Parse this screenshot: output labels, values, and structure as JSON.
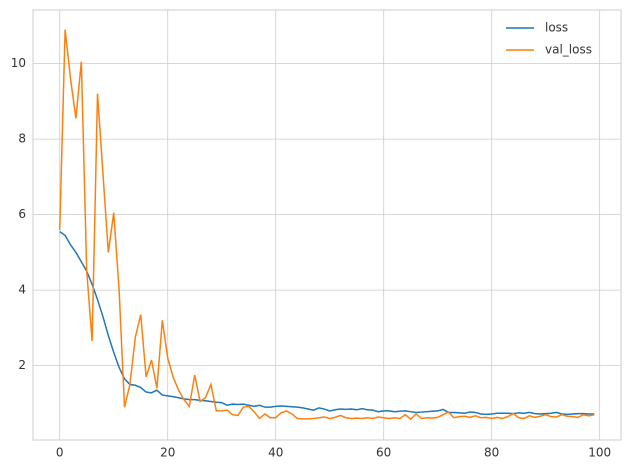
{
  "chart_data": {
    "type": "line",
    "x": [
      0,
      1,
      2,
      3,
      4,
      5,
      6,
      7,
      8,
      9,
      10,
      11,
      12,
      13,
      14,
      15,
      16,
      17,
      18,
      19,
      20,
      21,
      22,
      23,
      24,
      25,
      26,
      27,
      28,
      29,
      30,
      31,
      32,
      33,
      34,
      35,
      36,
      37,
      38,
      39,
      40,
      41,
      42,
      43,
      44,
      45,
      46,
      47,
      48,
      49,
      50,
      51,
      52,
      53,
      54,
      55,
      56,
      57,
      58,
      59,
      60,
      61,
      62,
      63,
      64,
      65,
      66,
      67,
      68,
      69,
      70,
      71,
      72,
      73,
      74,
      75,
      76,
      77,
      78,
      79,
      80,
      81,
      82,
      83,
      84,
      85,
      86,
      87,
      88,
      89,
      90,
      91,
      92,
      93,
      94,
      95,
      96,
      97,
      98,
      99
    ],
    "series": [
      {
        "name": "loss",
        "color": "#1f77b4",
        "values": [
          5.55,
          5.45,
          5.2,
          5.0,
          4.75,
          4.5,
          4.15,
          3.75,
          3.3,
          2.8,
          2.35,
          1.95,
          1.65,
          1.5,
          1.48,
          1.42,
          1.3,
          1.28,
          1.35,
          1.22,
          1.2,
          1.18,
          1.15,
          1.12,
          1.1,
          1.1,
          1.08,
          1.07,
          1.05,
          1.03,
          1.02,
          0.95,
          0.98,
          0.97,
          0.98,
          0.95,
          0.92,
          0.95,
          0.9,
          0.9,
          0.92,
          0.93,
          0.92,
          0.91,
          0.9,
          0.88,
          0.85,
          0.82,
          0.88,
          0.85,
          0.8,
          0.83,
          0.85,
          0.84,
          0.85,
          0.83,
          0.86,
          0.83,
          0.82,
          0.78,
          0.8,
          0.8,
          0.78,
          0.79,
          0.8,
          0.78,
          0.76,
          0.77,
          0.78,
          0.79,
          0.8,
          0.84,
          0.76,
          0.76,
          0.75,
          0.74,
          0.77,
          0.76,
          0.72,
          0.71,
          0.72,
          0.74,
          0.74,
          0.74,
          0.73,
          0.75,
          0.74,
          0.76,
          0.73,
          0.72,
          0.73,
          0.74,
          0.76,
          0.72,
          0.71,
          0.72,
          0.73,
          0.73,
          0.72,
          0.72
        ]
      },
      {
        "name": "val_loss",
        "color": "#ff7f0e",
        "values": [
          5.6,
          10.9,
          9.6,
          8.55,
          10.05,
          4.5,
          2.65,
          9.2,
          7.1,
          5.0,
          6.05,
          4.0,
          0.9,
          1.5,
          2.75,
          3.35,
          1.7,
          2.15,
          1.4,
          3.2,
          2.2,
          1.7,
          1.35,
          1.1,
          0.92,
          1.75,
          1.05,
          1.15,
          1.5,
          0.8,
          0.8,
          0.82,
          0.7,
          0.68,
          0.9,
          0.92,
          0.78,
          0.6,
          0.72,
          0.62,
          0.62,
          0.75,
          0.8,
          0.72,
          0.6,
          0.59,
          0.59,
          0.6,
          0.62,
          0.64,
          0.6,
          0.63,
          0.68,
          0.62,
          0.6,
          0.61,
          0.6,
          0.62,
          0.6,
          0.64,
          0.62,
          0.6,
          0.62,
          0.6,
          0.7,
          0.58,
          0.72,
          0.6,
          0.62,
          0.61,
          0.63,
          0.7,
          0.77,
          0.62,
          0.65,
          0.66,
          0.63,
          0.67,
          0.62,
          0.63,
          0.6,
          0.63,
          0.6,
          0.65,
          0.73,
          0.62,
          0.6,
          0.67,
          0.63,
          0.66,
          0.7,
          0.65,
          0.64,
          0.7,
          0.66,
          0.65,
          0.63,
          0.7,
          0.67,
          0.7
        ]
      }
    ],
    "xlim": [
      -4.95,
      103.95
    ],
    "xticks": [
      0,
      20,
      40,
      60,
      80,
      100
    ],
    "ylim": [
      0.03,
      11.42
    ],
    "yticks": [
      2,
      4,
      6,
      8,
      10
    ],
    "grid": true,
    "legend": "upper right"
  }
}
